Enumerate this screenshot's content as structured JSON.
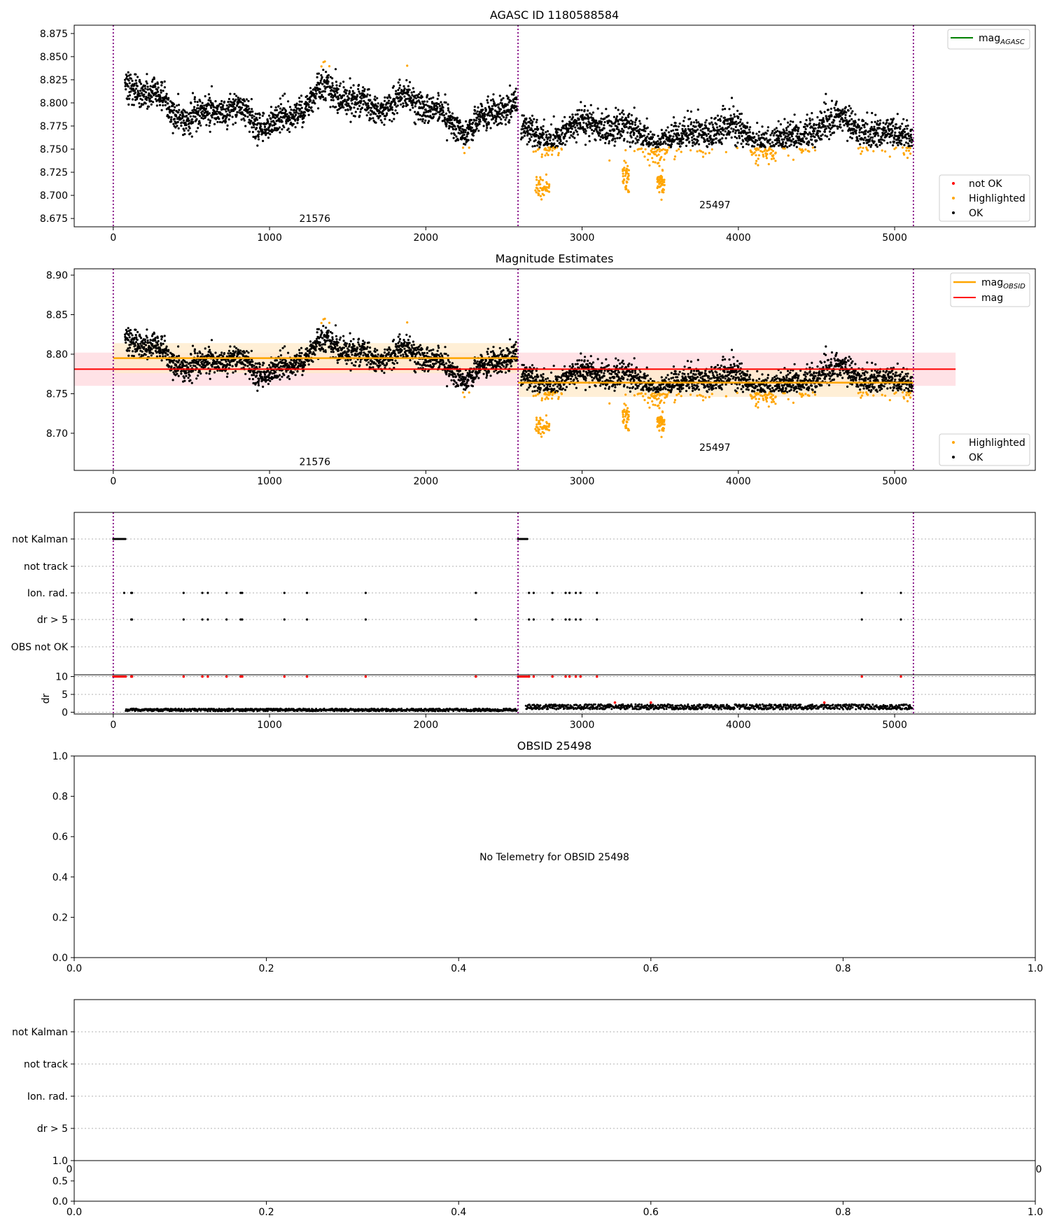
{
  "figure": {
    "background": "#ffffff",
    "colors": {
      "ok": "#000000",
      "highlighted": "#ffa500",
      "not_ok": "#ff0000",
      "mag_agasc": "#008000",
      "mag_obsid": "#ffa500",
      "mag": "#ff0000",
      "obs_boundary": "#800080",
      "band_obsid": "#ffebcc",
      "band_mag": "#ffd8dd",
      "grid": "#b0b0b0"
    }
  },
  "chart_data": [
    {
      "type": "scatter",
      "title": "AGASC ID 1180588584",
      "xlim": [
        -250,
        5900
      ],
      "ylim": [
        8.666,
        8.884
      ],
      "x_ticks": [
        0,
        1000,
        2000,
        3000,
        4000,
        5000
      ],
      "y_ticks": [
        "8.675",
        "8.700",
        "8.725",
        "8.750",
        "8.775",
        "8.800",
        "8.825",
        "8.850",
        "8.875"
      ],
      "obs_boundaries": [
        0,
        2590,
        5120
      ],
      "obs_labels": [
        {
          "text": "21576",
          "x": 1290,
          "y": 8.675
        },
        {
          "text": "25497",
          "x": 3850,
          "y": 8.69
        }
      ],
      "grid": false,
      "legends": [
        {
          "position": "upper-right",
          "entries": [
            {
              "label": "mag",
              "sub": "AGASC",
              "kind": "line",
              "color": "#008000"
            }
          ]
        },
        {
          "position": "lower-right",
          "entries": [
            {
              "label": "not OK",
              "kind": "point",
              "color": "#ff0000"
            },
            {
              "label": "Highlighted",
              "kind": "point",
              "color": "#ffa500"
            },
            {
              "label": "OK",
              "kind": "point",
              "color": "#000000"
            }
          ]
        }
      ]
    },
    {
      "type": "scatter",
      "title": "Magnitude Estimates",
      "xlim": [
        -250,
        5900
      ],
      "ylim": [
        8.653,
        8.908
      ],
      "x_ticks": [
        0,
        1000,
        2000,
        3000,
        4000,
        5000
      ],
      "y_ticks": [
        "8.70",
        "8.75",
        "8.80",
        "8.85",
        "8.90"
      ],
      "obs_boundaries": [
        0,
        2590,
        5120
      ],
      "obs_labels": [
        {
          "text": "21576",
          "x": 1290,
          "y": 8.664
        },
        {
          "text": "25497",
          "x": 3850,
          "y": 8.682
        }
      ],
      "mag_obsid": [
        {
          "x": [
            0,
            2590
          ],
          "value": 8.795,
          "band": [
            8.776,
            8.814
          ]
        },
        {
          "x": [
            2590,
            5120
          ],
          "value": 8.764,
          "band": [
            8.746,
            8.782
          ]
        }
      ],
      "mag": {
        "x": [
          -250,
          5390
        ],
        "value": 8.781,
        "band": [
          8.76,
          8.802
        ]
      },
      "grid": false,
      "legends": [
        {
          "position": "upper-right",
          "entries": [
            {
              "label": "mag",
              "sub": "OBSID",
              "kind": "line",
              "color": "#ffa500"
            },
            {
              "label": "mag",
              "kind": "line",
              "color": "#ff0000"
            }
          ]
        },
        {
          "position": "lower-right",
          "entries": [
            {
              "label": "Highlighted",
              "kind": "point",
              "color": "#ffa500"
            },
            {
              "label": "OK",
              "kind": "point",
              "color": "#000000"
            }
          ]
        }
      ]
    },
    {
      "type": "scatter",
      "title": "",
      "xlim": [
        -250,
        5900
      ],
      "categories": [
        "not Kalman",
        "not track",
        "Ion. rad.",
        "dr > 5",
        "OBS not OK"
      ],
      "flag_points": {
        "not Kalman": [
          [
            0,
            80
          ],
          [
            2590,
            2650
          ]
        ],
        "not track": [],
        "Ion. rad.": [
          70,
          115,
          120,
          450,
          570,
          605,
          725,
          815,
          825,
          1095,
          1240,
          1615,
          2320,
          2660,
          2690,
          2810,
          2895,
          2920,
          2960,
          2990,
          3095,
          4790,
          5040
        ],
        "dr > 5": [
          115,
          120,
          450,
          570,
          605,
          725,
          815,
          825,
          1095,
          1240,
          1615,
          2320,
          2660,
          2690,
          2810,
          2895,
          2920,
          2960,
          2990,
          3095,
          4790,
          5040
        ],
        "OBS not OK": []
      },
      "dr_panel": {
        "ylabel": "dr",
        "ylim": [
          -0.5,
          10.5
        ],
        "y_ticks": [
          "0",
          "5",
          "10"
        ],
        "obs1_level": [
          0.3,
          1.0
        ],
        "obs2_level": [
          0.8,
          2.2
        ]
      },
      "obs_boundaries": [
        0,
        2590,
        5120
      ],
      "x_ticks": [
        0,
        1000,
        2000,
        3000,
        4000,
        5000
      ]
    },
    {
      "type": "scatter",
      "title": "OBSID 25498",
      "xlim": [
        0,
        1
      ],
      "ylim": [
        0,
        1
      ],
      "x_ticks": [
        "0.0",
        "0.2",
        "0.4",
        "0.6",
        "0.8",
        "1.0"
      ],
      "y_ticks": [
        "0.0",
        "0.2",
        "0.4",
        "0.6",
        "0.8",
        "1.0"
      ],
      "message": "No Telemetry for OBSID 25498",
      "series": []
    },
    {
      "type": "scatter",
      "title": "",
      "categories": [
        "not Kalman",
        "not track",
        "Ion. rad.",
        "dr > 5"
      ],
      "corner_labels": [
        "0",
        "0"
      ],
      "dr_panel": {
        "y_ticks": [
          "0.0",
          "0.5",
          "1.0"
        ],
        "x_ticks": [
          "0.0",
          "0.2",
          "0.4",
          "0.6",
          "0.8",
          "1.0"
        ]
      },
      "series": []
    }
  ]
}
